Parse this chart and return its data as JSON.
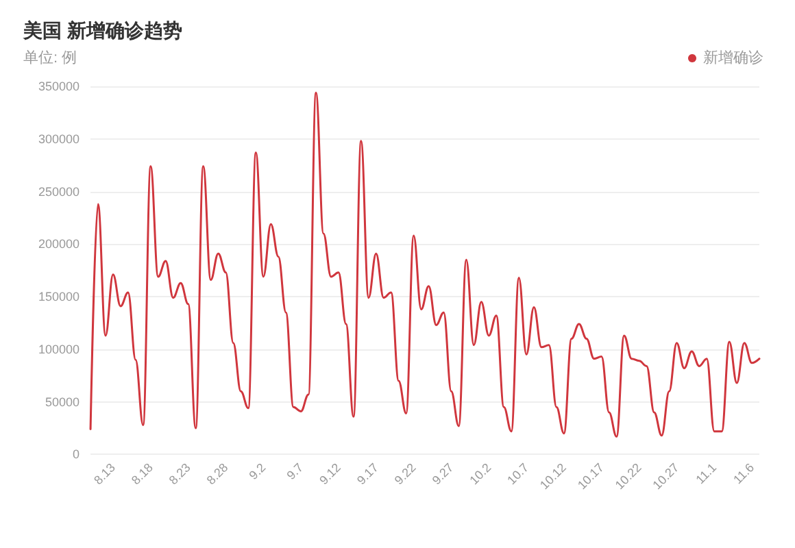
{
  "chart_data": {
    "type": "line",
    "title": "美国 新增确诊趋势",
    "subtitle": "单位: 例",
    "categories": [
      null,
      null,
      null,
      "8.13",
      null,
      null,
      null,
      null,
      "8.18",
      null,
      null,
      null,
      null,
      "8.23",
      null,
      null,
      null,
      null,
      "8.28",
      null,
      null,
      null,
      null,
      "9.2",
      null,
      null,
      null,
      null,
      "9.7",
      null,
      null,
      null,
      null,
      "9.12",
      null,
      null,
      null,
      null,
      "9.17",
      null,
      null,
      null,
      null,
      "9.22",
      null,
      null,
      null,
      null,
      "9.27",
      null,
      null,
      null,
      null,
      "10.2",
      null,
      null,
      null,
      null,
      "10.7",
      null,
      null,
      null,
      null,
      "10.12",
      null,
      null,
      null,
      null,
      "10.17",
      null,
      null,
      null,
      null,
      "10.22",
      null,
      null,
      null,
      null,
      "10.27",
      null,
      null,
      null,
      null,
      "11.1",
      null,
      null,
      null,
      null,
      "11.6",
      null
    ],
    "series": [
      {
        "name": "新增确诊",
        "color": "#d0363d",
        "values": [
          24000,
          238000,
          113000,
          171000,
          141000,
          154000,
          90000,
          28000,
          274000,
          169000,
          184000,
          149000,
          163000,
          143000,
          25000,
          274000,
          166000,
          191000,
          173000,
          106000,
          60000,
          44000,
          287000,
          169000,
          219000,
          188000,
          135000,
          45000,
          41000,
          57000,
          344000,
          210000,
          169000,
          173000,
          124000,
          36000,
          298000,
          149000,
          191000,
          149000,
          154000,
          70000,
          39000,
          208000,
          138000,
          160000,
          123000,
          135000,
          60000,
          27000,
          185000,
          104000,
          145000,
          113000,
          132000,
          45000,
          22000,
          168000,
          95000,
          140000,
          102000,
          104000,
          45000,
          20000,
          110000,
          124000,
          110000,
          91000,
          93000,
          40000,
          17000,
          113000,
          91000,
          89000,
          84000,
          40000,
          18000,
          60000,
          106000,
          82000,
          98000,
          84000,
          91000,
          22000,
          22000,
          107000,
          68000,
          106000,
          87000,
          91000
        ]
      }
    ],
    "ylim": [
      0,
      350000
    ],
    "yticks": [
      0,
      50000,
      100000,
      150000,
      200000,
      250000,
      300000,
      350000
    ],
    "grid": "y",
    "legend": "top right",
    "marker": "none",
    "line_style": "solid"
  }
}
